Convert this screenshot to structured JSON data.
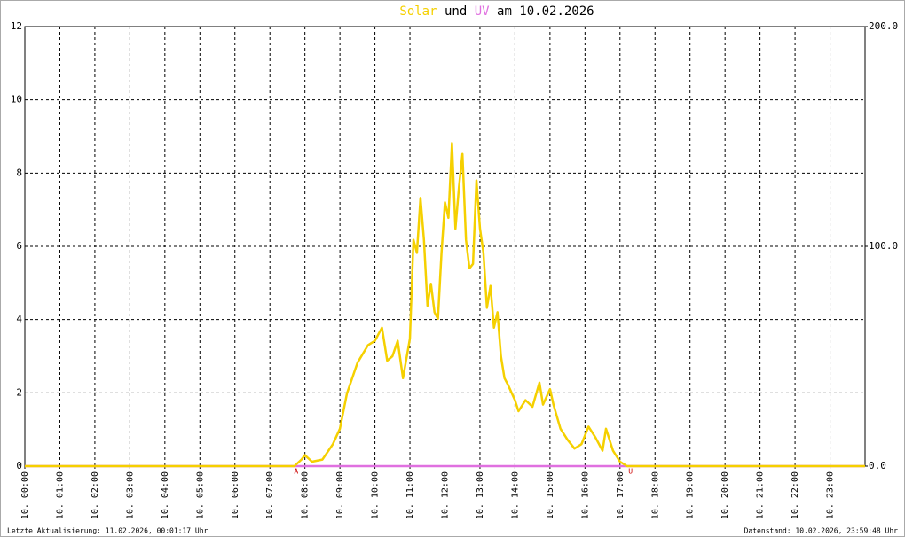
{
  "chart_data": {
    "type": "line",
    "title_connector": "und",
    "title_suffix": "am 10.02.2026",
    "xlim": [
      0,
      24
    ],
    "xticks": [
      {
        "value": 0,
        "label": "10. 00:00"
      },
      {
        "value": 1,
        "label": "10. 01:00"
      },
      {
        "value": 2,
        "label": "10. 02:00"
      },
      {
        "value": 3,
        "label": "10. 03:00"
      },
      {
        "value": 4,
        "label": "10. 04:00"
      },
      {
        "value": 5,
        "label": "10. 05:00"
      },
      {
        "value": 6,
        "label": "10. 06:00"
      },
      {
        "value": 7,
        "label": "10. 07:00"
      },
      {
        "value": 8,
        "label": "10. 08:00"
      },
      {
        "value": 9,
        "label": "10. 09:00"
      },
      {
        "value": 10,
        "label": "10. 10:00"
      },
      {
        "value": 11,
        "label": "10. 11:00"
      },
      {
        "value": 12,
        "label": "10. 12:00"
      },
      {
        "value": 13,
        "label": "10. 13:00"
      },
      {
        "value": 14,
        "label": "10. 14:00"
      },
      {
        "value": 15,
        "label": "10. 15:00"
      },
      {
        "value": 16,
        "label": "10. 16:00"
      },
      {
        "value": 17,
        "label": "10. 17:00"
      },
      {
        "value": 18,
        "label": "10. 18:00"
      },
      {
        "value": 19,
        "label": "10. 19:00"
      },
      {
        "value": 20,
        "label": "10. 20:00"
      },
      {
        "value": 21,
        "label": "10. 21:00"
      },
      {
        "value": 22,
        "label": "10. 22:00"
      },
      {
        "value": 23,
        "label": "10. 23:00"
      }
    ],
    "ylim": [
      0,
      12
    ],
    "yticks": [
      0,
      2,
      4,
      6,
      8,
      10,
      12
    ],
    "y2lim": [
      0,
      200
    ],
    "y2ticks": [
      {
        "value": 0,
        "label": "0.0"
      },
      {
        "value": 100,
        "label": "100.0"
      },
      {
        "value": 200,
        "label": "200.0"
      }
    ],
    "grid": true,
    "series": [
      {
        "name": "Solar",
        "color": "#f5d000",
        "axis": "y2",
        "x": [
          0,
          7.7,
          7.9,
          8.0,
          8.2,
          8.5,
          8.8,
          9.0,
          9.2,
          9.5,
          9.8,
          10.0,
          10.1,
          10.2,
          10.35,
          10.5,
          10.65,
          10.8,
          11.0,
          11.1,
          11.2,
          11.3,
          11.4,
          11.5,
          11.6,
          11.7,
          11.8,
          11.9,
          12.0,
          12.1,
          12.2,
          12.3,
          12.4,
          12.5,
          12.6,
          12.7,
          12.8,
          12.9,
          13.0,
          13.1,
          13.2,
          13.3,
          13.4,
          13.5,
          13.6,
          13.7,
          13.8,
          14.0,
          14.1,
          14.3,
          14.5,
          14.7,
          14.8,
          15.0,
          15.1,
          15.3,
          15.5,
          15.7,
          15.9,
          16.1,
          16.3,
          16.5,
          16.6,
          16.8,
          17.0,
          17.2,
          24
        ],
        "values": [
          0,
          0,
          3,
          5,
          2,
          3,
          10,
          17,
          33,
          47,
          55,
          57,
          60,
          63,
          48,
          50,
          57,
          40,
          58,
          103,
          97,
          122,
          103,
          73,
          83,
          70,
          67,
          97,
          120,
          113,
          147,
          108,
          127,
          142,
          103,
          90,
          92,
          130,
          108,
          97,
          72,
          82,
          63,
          70,
          50,
          40,
          37,
          30,
          25,
          30,
          27,
          38,
          28,
          35,
          28,
          17,
          12,
          8,
          10,
          18,
          13,
          7,
          17,
          7,
          2,
          0,
          0
        ]
      },
      {
        "name": "UV",
        "color": "#e070e0",
        "x": [
          0,
          24
        ],
        "values": [
          0,
          0
        ]
      }
    ],
    "annotations": [
      {
        "text": "A",
        "x": 7.75
      },
      {
        "text": "U",
        "x": 17.3
      }
    ],
    "footer_left": "Letzte Aktualisierung: 11.02.2026, 00:01:17 Uhr",
    "footer_right": "Datenstand: 10.02.2026, 23:59:48 Uhr"
  }
}
